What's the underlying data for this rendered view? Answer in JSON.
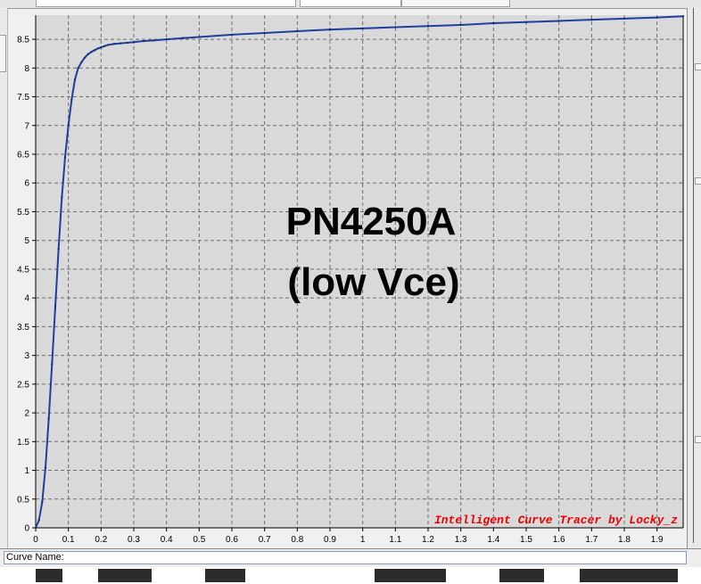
{
  "status": {
    "curve_name_label": "Curve Name:"
  },
  "colors": {
    "plot_background": "#d9d9d9",
    "grid": "#6e6e6e",
    "curve": "#1f3f9f",
    "watermark": "#ee0000",
    "annotation": "#000000"
  },
  "chart_data": {
    "type": "line",
    "x_ticks": [
      "0",
      "0.1",
      "0.2",
      "0.3",
      "0.4",
      "0.5",
      "0.6",
      "0.7",
      "0.8",
      "0.9",
      "1",
      "1.1",
      "1.2",
      "1.3",
      "1.4",
      "1.5",
      "1.6",
      "1.7",
      "1.8",
      "1.9"
    ],
    "y_ticks": [
      "0",
      "0.5",
      "1",
      "1.5",
      "2",
      "2.5",
      "3",
      "3.5",
      "4",
      "4.5",
      "5",
      "5.5",
      "6",
      "6.5",
      "7",
      "7.5",
      "8",
      "8.5"
    ],
    "xlim": [
      0,
      1.98
    ],
    "ylim": [
      0,
      8.92
    ],
    "grid": true,
    "annotation_lines": [
      "PN4250A",
      "(low Vce)"
    ],
    "watermark": "Intelligent Curve Tracer by Locky_z",
    "series": [
      {
        "x": [
          0,
          0.01,
          0.02,
          0.03,
          0.04,
          0.05,
          0.06,
          0.07,
          0.08,
          0.09,
          0.1,
          0.11,
          0.12,
          0.13,
          0.14,
          0.15,
          0.16,
          0.17,
          0.18,
          0.19,
          0.2,
          0.21,
          0.22,
          0.24,
          0.26,
          0.28,
          0.3,
          0.33,
          0.36,
          0.4,
          0.45,
          0.5,
          0.6,
          0.7,
          0.8,
          0.9,
          1.0,
          1.1,
          1.2,
          1.3,
          1.4,
          1.5,
          1.6,
          1.7,
          1.8,
          1.9,
          1.98
        ],
        "y": [
          0,
          0.13,
          0.45,
          1.05,
          1.9,
          2.85,
          3.85,
          4.85,
          5.75,
          6.45,
          7.0,
          7.45,
          7.8,
          8.0,
          8.1,
          8.18,
          8.24,
          8.28,
          8.31,
          8.34,
          8.36,
          8.38,
          8.4,
          8.42,
          8.43,
          8.44,
          8.45,
          8.47,
          8.48,
          8.5,
          8.52,
          8.54,
          8.58,
          8.61,
          8.64,
          8.67,
          8.69,
          8.71,
          8.73,
          8.75,
          8.78,
          8.8,
          8.82,
          8.84,
          8.86,
          8.88,
          8.9
        ]
      }
    ]
  }
}
